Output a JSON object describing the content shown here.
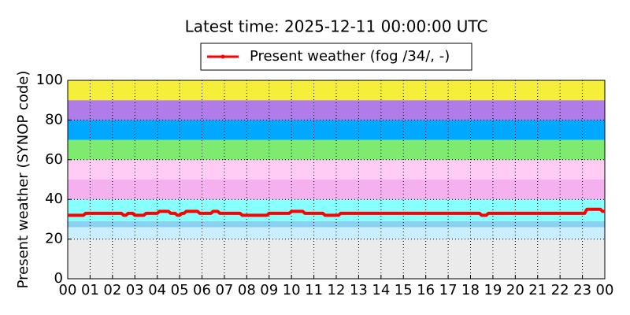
{
  "chart_data": {
    "type": "line",
    "title": "Latest time: 2025-12-11 00:00:00 UTC",
    "y_label": "Present weather (SYNOP code)",
    "x": [
      0,
      0.7,
      0.8,
      2.4,
      2.5,
      2.6,
      2.7,
      2.9,
      3.0,
      3.4,
      3.5,
      4.0,
      4.1,
      4.5,
      4.6,
      4.8,
      4.9,
      5.0,
      5.1,
      5.2,
      5.3,
      5.8,
      5.9,
      6.4,
      6.5,
      6.7,
      6.8,
      7.7,
      7.8,
      8.9,
      9.0,
      9.9,
      10.0,
      10.5,
      10.6,
      11.4,
      11.5,
      12.1,
      12.2,
      18.4,
      18.5,
      18.7,
      18.8,
      23.1,
      23.2,
      23.8,
      23.9,
      24.0
    ],
    "series": [
      {
        "name": "Present weather (fog /34/, -)",
        "color": "#ff0000",
        "values": [
          32,
          32,
          33,
          33,
          32,
          32,
          33,
          33,
          32,
          32,
          33,
          33,
          34,
          34,
          33,
          33,
          32,
          32,
          33,
          33,
          34,
          34,
          33,
          33,
          34,
          34,
          33,
          33,
          32,
          32,
          33,
          33,
          34,
          34,
          33,
          33,
          32,
          32,
          33,
          33,
          32,
          32,
          33,
          33,
          35,
          35,
          34,
          34
        ]
      }
    ],
    "bands": [
      {
        "from": 0,
        "to": 20,
        "color": "#ebebeb"
      },
      {
        "from": 20,
        "to": 26,
        "color": "#c8eeff"
      },
      {
        "from": 26,
        "to": 29,
        "color": "#8cd1f2"
      },
      {
        "from": 29,
        "to": 40,
        "color": "#88ffff"
      },
      {
        "from": 40,
        "to": 50,
        "color": "#f5b0f0"
      },
      {
        "from": 50,
        "to": 60,
        "color": "#ffccf5"
      },
      {
        "from": 60,
        "to": 70,
        "color": "#7fea70"
      },
      {
        "from": 70,
        "to": 80,
        "color": "#00a8ff"
      },
      {
        "from": 80,
        "to": 90,
        "color": "#b07de8"
      },
      {
        "from": 90,
        "to": 100,
        "color": "#f5ef3a"
      }
    ],
    "xlim": [
      0,
      24
    ],
    "xticks": [
      {
        "value": 0,
        "label": "00"
      },
      {
        "value": 1,
        "label": "01"
      },
      {
        "value": 2,
        "label": "02"
      },
      {
        "value": 3,
        "label": "03"
      },
      {
        "value": 4,
        "label": "04"
      },
      {
        "value": 5,
        "label": "05"
      },
      {
        "value": 6,
        "label": "06"
      },
      {
        "value": 7,
        "label": "07"
      },
      {
        "value": 8,
        "label": "08"
      },
      {
        "value": 9,
        "label": "09"
      },
      10,
      11,
      12,
      13,
      14,
      15,
      16,
      17,
      18,
      19,
      20,
      21,
      22,
      23,
      {
        "value": 24,
        "label": "00"
      }
    ],
    "ylim": [
      0,
      100
    ],
    "yticks": [
      0,
      20,
      40,
      60,
      80,
      100
    ],
    "grid": true
  }
}
